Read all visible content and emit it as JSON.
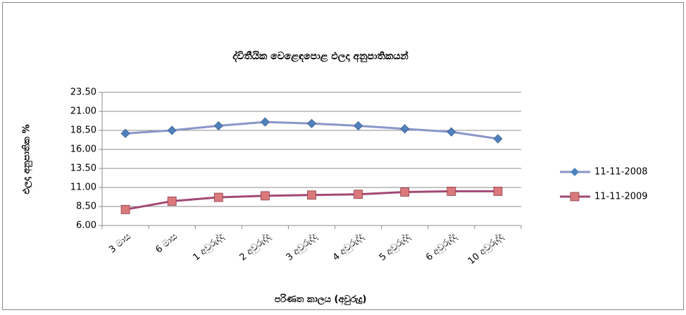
{
  "chart_data": {
    "type": "line",
    "title": "ද්විතීයික වෙළෙඳපොළ ඵලදා අනුපාතිකයන්",
    "ylabel": "ඵලදා අනුපාතික %",
    "xlabel": "පරිණත කාලය (අවුරුදු)",
    "categories": [
      "3 මාස",
      "6 මාස",
      "1 අවුරුද්ද",
      "2 අවුරුද්ද",
      "3 අවුරුද්ද",
      "4 අවුරුද්ද",
      "5 අවුරුද්ද",
      "6 අවුරුද්ද",
      "10 අවුරුද්ද"
    ],
    "series": [
      {
        "name": "11-11-2008",
        "color": "#4f81bd",
        "line_color": "#8a96c8",
        "marker": "diamond",
        "values": [
          18.1,
          18.5,
          19.1,
          19.6,
          19.4,
          19.1,
          18.7,
          18.3,
          17.4
        ]
      },
      {
        "name": "11-11-2009",
        "color": "#d9797b",
        "line_color": "#a34873",
        "marker": "square",
        "values": [
          8.1,
          9.2,
          9.7,
          9.9,
          10.0,
          10.1,
          10.4,
          10.5,
          10.5
        ]
      }
    ],
    "ylim": [
      6,
      23.5
    ],
    "yticks": [
      {
        "value": 6,
        "label": "6.00"
      },
      {
        "value": 8.5,
        "label": "8.50"
      },
      {
        "value": 11,
        "label": "11.00"
      },
      {
        "value": 13.5,
        "label": "13.50"
      },
      {
        "value": 16,
        "label": "16.00"
      },
      {
        "value": 18.5,
        "label": "18.50"
      },
      {
        "value": 21,
        "label": "21.00"
      },
      {
        "value": 23.5,
        "label": "23.50"
      }
    ],
    "grid": true,
    "legend": "right"
  }
}
